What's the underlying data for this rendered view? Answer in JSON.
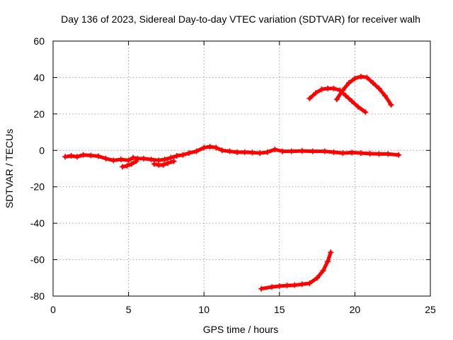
{
  "chart_data": {
    "type": "line",
    "title": "Day 136 of 2023, Sidereal Day-to-day VTEC variation (SDTVAR) for receiver walh",
    "xlabel": "GPS time / hours",
    "ylabel": "SDTVAR / TECUs",
    "xlim": [
      0,
      25
    ],
    "ylim": [
      -80,
      60
    ],
    "xticks": [
      0,
      5,
      10,
      15,
      20,
      25
    ],
    "yticks": [
      -80,
      -60,
      -40,
      -20,
      0,
      20,
      40,
      60
    ],
    "grid": true,
    "legend": "none",
    "series_color": "#ff0000",
    "series": [
      {
        "name": "main",
        "x": [
          0.8,
          1.2,
          1.6,
          2.0,
          2.5,
          3.0,
          3.5,
          4.0,
          4.5,
          5.0,
          5.3,
          5.6,
          6.0,
          6.5,
          7.0,
          7.4,
          7.8,
          8.2,
          8.6,
          9.0,
          9.5,
          10.0,
          10.4,
          10.8,
          11.2,
          11.7,
          12.2,
          12.7,
          13.2,
          13.7,
          14.2,
          14.7,
          15.2,
          15.8,
          16.5,
          17.2,
          18.0,
          18.6,
          19.2,
          19.8,
          20.4,
          21.0,
          21.6,
          22.2,
          22.9
        ],
        "y": [
          -3.5,
          -3.0,
          -3.5,
          -2.5,
          -2.8,
          -3.2,
          -4.5,
          -5.5,
          -5.0,
          -5.5,
          -4.0,
          -4.5,
          -4.5,
          -5.0,
          -5.5,
          -5.0,
          -4.0,
          -3.0,
          -2.5,
          -1.5,
          -0.5,
          1.5,
          2.0,
          1.5,
          0.0,
          -0.5,
          -1.0,
          -1.0,
          -1.2,
          -1.5,
          -1.0,
          0.5,
          -0.5,
          -0.5,
          -0.3,
          -0.5,
          -0.5,
          -1.0,
          -1.5,
          -1.2,
          -1.5,
          -1.8,
          -2.0,
          -2.0,
          -2.5
        ]
      },
      {
        "name": "dip-a",
        "x": [
          4.6,
          4.9,
          5.2,
          5.5
        ],
        "y": [
          -9.0,
          -8.5,
          -7.5,
          -6.0
        ]
      },
      {
        "name": "dip-b",
        "x": [
          6.7,
          7.0,
          7.3,
          7.6,
          8.0
        ],
        "y": [
          -7.5,
          -8.0,
          -8.0,
          -7.0,
          -6.0
        ]
      },
      {
        "name": "arc-a",
        "x": [
          17.0,
          17.4,
          17.8,
          18.2,
          18.6,
          19.0,
          19.4,
          19.8,
          20.2,
          20.7
        ],
        "y": [
          28.5,
          31.5,
          33.5,
          34.0,
          34.0,
          33.0,
          30.0,
          27.0,
          24.0,
          21.0
        ]
      },
      {
        "name": "arc-b",
        "x": [
          18.8,
          19.2,
          19.6,
          20.0,
          20.4,
          20.8,
          21.2,
          21.6,
          22.0,
          22.4
        ],
        "y": [
          28.0,
          33.0,
          37.0,
          39.5,
          40.5,
          40.0,
          37.0,
          34.0,
          30.0,
          25.0
        ]
      },
      {
        "name": "rising",
        "x": [
          13.8,
          14.5,
          15.0,
          15.5,
          16.0,
          16.5,
          17.0,
          17.5,
          17.9,
          18.2,
          18.4
        ],
        "y": [
          -76.0,
          -75.0,
          -74.5,
          -74.2,
          -74.0,
          -73.5,
          -73.0,
          -70.0,
          -66.0,
          -61.0,
          -56.0
        ]
      }
    ]
  }
}
